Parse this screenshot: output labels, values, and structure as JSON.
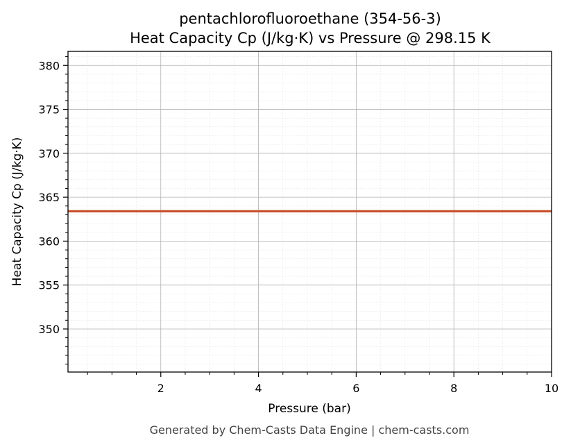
{
  "chart_data": {
    "type": "line",
    "title": "pentachlorofluoroethane (354-56-3)",
    "subtitle": "Heat Capacity Cp (J/kg·K) vs Pressure @ 298.15 K",
    "xlabel": "Pressure (bar)",
    "ylabel": "Heat Capacity Cp (J/kg·K)",
    "xlim": [
      0.1,
      10
    ],
    "ylim": [
      345.1,
      381.6
    ],
    "x_ticks": [
      2,
      4,
      6,
      8,
      10
    ],
    "y_ticks": [
      350,
      355,
      360,
      365,
      370,
      375,
      380
    ],
    "x_minor_step": 0.5,
    "y_minor_step": 1,
    "grid": true,
    "series": [
      {
        "color": "#c8502a",
        "x": [
          0.1,
          10
        ],
        "y": [
          363.4,
          363.4
        ]
      }
    ]
  },
  "footer": {
    "text": "Generated by Chem-Casts Data Engine | chem-casts.com"
  }
}
